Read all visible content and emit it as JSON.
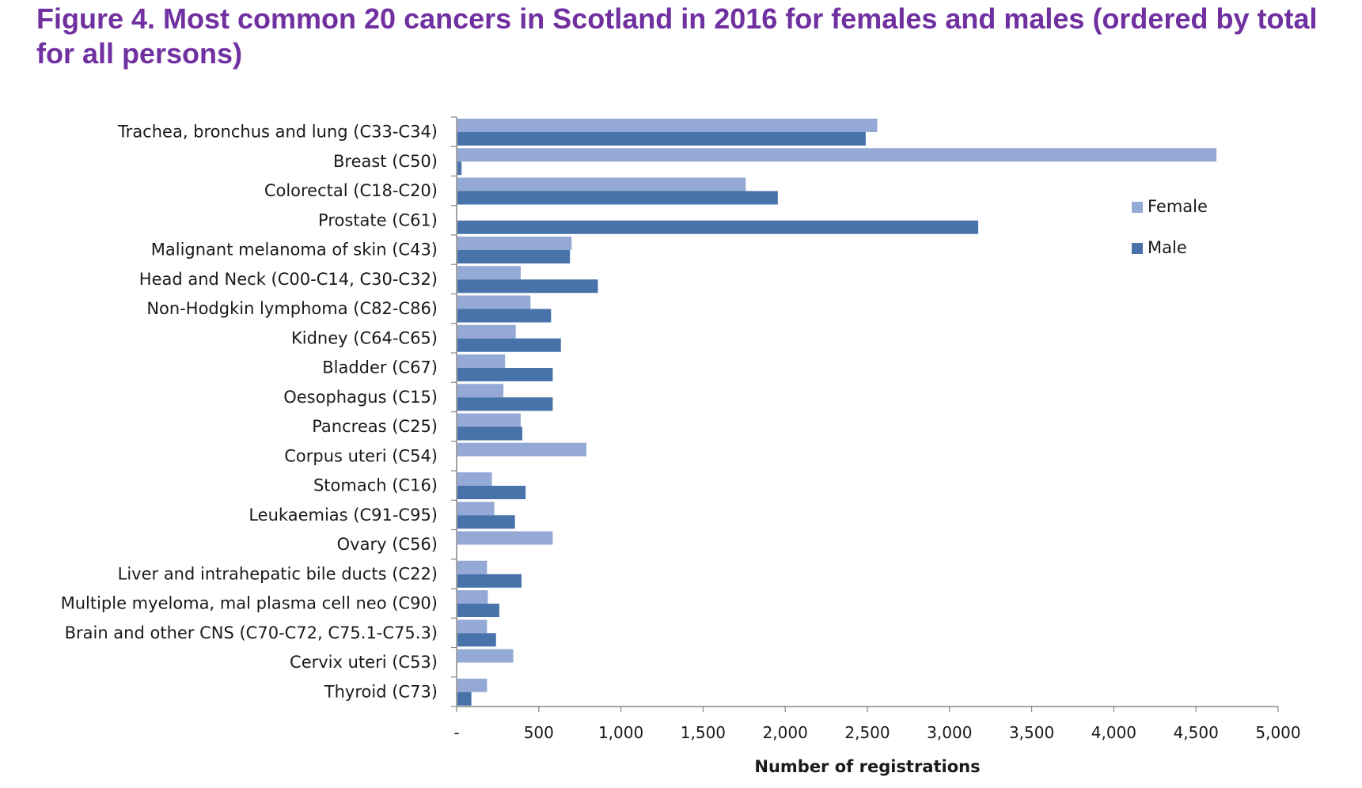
{
  "title": "Figure 4. Most common 20 cancers in Scotland in 2016 for females and males (ordered by total for all persons)",
  "chart_data": {
    "type": "bar",
    "orientation": "horizontal",
    "categories": [
      "Trachea, bronchus and lung (C33-C34)",
      "Breast (C50)",
      "Colorectal (C18-C20)",
      "Prostate (C61)",
      "Malignant melanoma of skin (C43)",
      "Head and Neck (C00-C14, C30-C32)",
      "Non-Hodgkin lymphoma (C82-C86)",
      "Kidney (C64-C65)",
      "Bladder (C67)",
      "Oesophagus (C15)",
      "Pancreas (C25)",
      "Corpus uteri (C54)",
      "Stomach (C16)",
      "Leukaemias (C91-C95)",
      "Ovary (C56)",
      "Liver and intrahepatic bile ducts (C22)",
      "Multiple myeloma, mal plasma cell neo (C90)",
      "Brain and other CNS (C70-C72, C75.1-C75.3)",
      "Cervix uteri (C53)",
      "Thyroid (C73)"
    ],
    "series": [
      {
        "name": "Female",
        "color": "#95a9d6",
        "values": [
          2555,
          4620,
          1755,
          0,
          695,
          385,
          445,
          355,
          290,
          280,
          385,
          785,
          210,
          225,
          580,
          180,
          185,
          180,
          340,
          180
        ]
      },
      {
        "name": "Male",
        "color": "#4872aa",
        "values": [
          2485,
          25,
          1950,
          3170,
          685,
          855,
          570,
          630,
          580,
          580,
          395,
          0,
          415,
          350,
          0,
          390,
          255,
          235,
          0,
          85
        ]
      }
    ],
    "xlim": [
      0,
      5000
    ],
    "xticks": [
      0,
      500,
      1000,
      1500,
      2000,
      2500,
      3000,
      3500,
      4000,
      4500,
      5000
    ],
    "xtick_labels": [
      "-",
      "500",
      "1,000",
      "1,500",
      "2,000",
      "2,500",
      "3,000",
      "3,500",
      "4,000",
      "4,500",
      "5,000"
    ],
    "xlabel": "Number of registrations",
    "ylabel": "",
    "grid": false,
    "legend_position": "right"
  }
}
